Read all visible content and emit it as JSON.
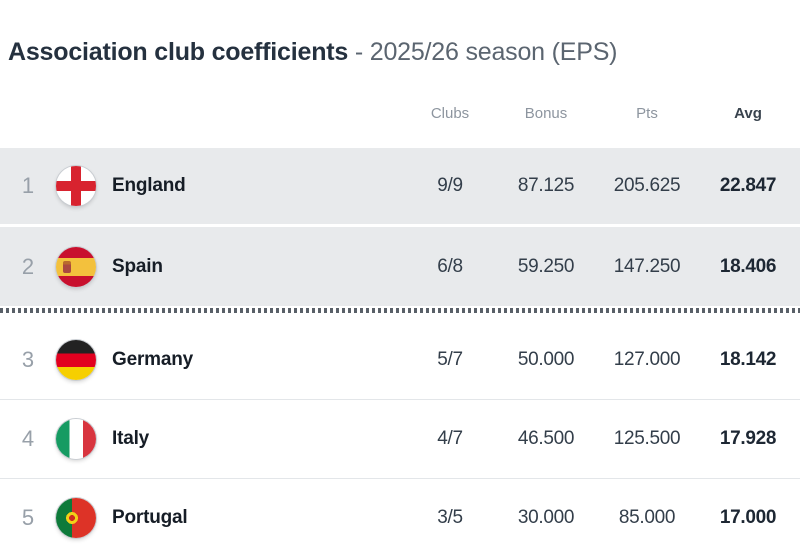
{
  "title": {
    "main": "Association club coefficients",
    "sub": " - 2025/26 season (EPS)"
  },
  "table": {
    "headers": {
      "clubs": "Clubs",
      "bonus": "Bonus",
      "pts": "Pts",
      "avg": "Avg"
    },
    "rows": [
      {
        "rank": "1",
        "country": "England",
        "flag": "england",
        "clubs": "9/9",
        "bonus": "87.125",
        "pts": "205.625",
        "avg": "22.847",
        "highlight": true
      },
      {
        "rank": "2",
        "country": "Spain",
        "flag": "spain",
        "clubs": "6/8",
        "bonus": "59.250",
        "pts": "147.250",
        "avg": "18.406",
        "highlight": true
      },
      {
        "rank": "3",
        "country": "Germany",
        "flag": "germany",
        "clubs": "5/7",
        "bonus": "50.000",
        "pts": "127.000",
        "avg": "18.142",
        "highlight": false
      },
      {
        "rank": "4",
        "country": "Italy",
        "flag": "italy",
        "clubs": "4/7",
        "bonus": "46.500",
        "pts": "125.500",
        "avg": "17.928",
        "highlight": false
      },
      {
        "rank": "5",
        "country": "Portugal",
        "flag": "portugal",
        "clubs": "3/5",
        "bonus": "30.000",
        "pts": "85.000",
        "avg": "17.000",
        "highlight": false
      }
    ]
  },
  "colors": {
    "highlight_row_bg": "#e8eaec",
    "title_main": "#25313f",
    "title_sub": "#5b6570",
    "header_text": "#8d959f",
    "rank_text": "#98a0a9",
    "value_text": "#333e4a",
    "cutoff_dots": "#596068"
  }
}
